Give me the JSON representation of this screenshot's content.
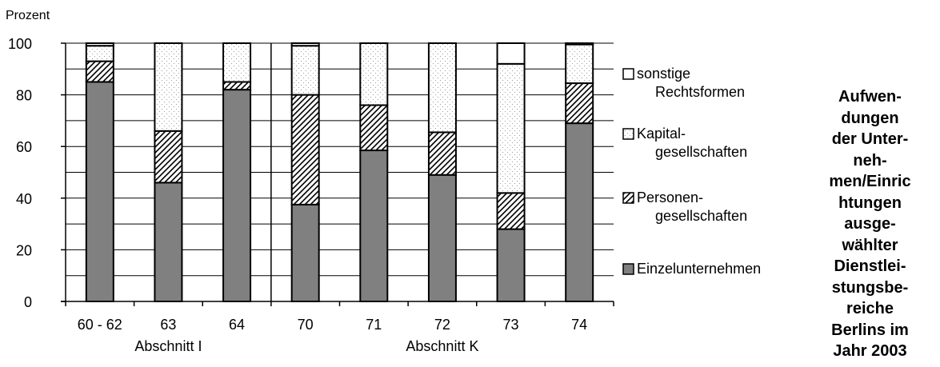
{
  "side_title": "Aufwen-\ndungen\nder Unter-\nneh-\nmen/Einric\nhtungen\nausge-\nwählter\nDienstlei-\nstungsbe-\nreiche\nBerlins im\nJahr 2003",
  "chart_data": {
    "type": "bar",
    "stacked": true,
    "ylabel": "Prozent",
    "ylim": [
      0,
      100
    ],
    "yticks": [
      0,
      20,
      40,
      60,
      80,
      100
    ],
    "grid": true,
    "legend_position": "right",
    "categories": [
      "60 - 62",
      "63",
      "64",
      "70",
      "71",
      "72",
      "73",
      "74"
    ],
    "groups": [
      {
        "label": "Abschnitt I",
        "categories": [
          "60 - 62",
          "63",
          "64"
        ]
      },
      {
        "label": "Abschnitt K",
        "categories": [
          "70",
          "71",
          "72",
          "73",
          "74"
        ]
      }
    ],
    "series": [
      {
        "name": "Einzelunternehmen",
        "pattern": "solid",
        "color": "#808080",
        "values": [
          85,
          46,
          82,
          37.5,
          58.5,
          49,
          28,
          69
        ]
      },
      {
        "name": "Personen-\ngesellschaften",
        "pattern": "hatch",
        "color": "#ffffff",
        "values": [
          8,
          20,
          3,
          42.5,
          17.5,
          16.5,
          14,
          15.5
        ]
      },
      {
        "name": "Kapital-\ngesellschaften",
        "pattern": "dots",
        "color": "#ffffff",
        "values": [
          6,
          34,
          15,
          19,
          24,
          34.5,
          50,
          15
        ]
      },
      {
        "name": "sonstige\nRechtsformen",
        "pattern": "empty",
        "color": "#ffffff",
        "values": [
          1,
          0,
          0,
          1,
          0,
          0,
          8,
          0.5
        ]
      }
    ],
    "legend_order": [
      "sonstige\nRechtsformen",
      "Kapital-\ngesellschaften",
      "Personen-\ngesellschaften",
      "Einzelunternehmen"
    ]
  }
}
